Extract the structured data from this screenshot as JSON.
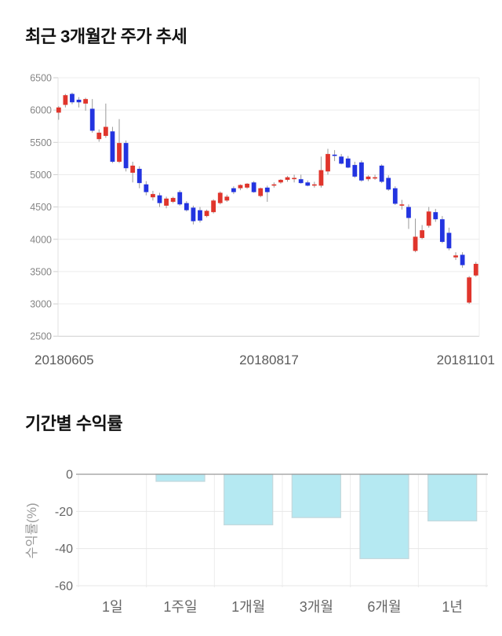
{
  "chart_data": [
    {
      "type": "candlestick",
      "title": "최근 3개월간 주가 추세",
      "x_axis_labels": [
        "20180605",
        "20180817",
        "20181101"
      ],
      "y_ticks": [
        6500,
        6000,
        5500,
        5000,
        4500,
        4000,
        3500,
        3000,
        2500
      ],
      "ylim": [
        2500,
        6500
      ],
      "grid": "horizontal",
      "up_color": "#e0352c",
      "down_color": "#2334e0",
      "wick_color": "#9a9a9a",
      "ohlc": [
        [
          5960,
          6060,
          5850,
          6040
        ],
        [
          6080,
          6250,
          6040,
          6230
        ],
        [
          6250,
          6270,
          6090,
          6120
        ],
        [
          6160,
          6200,
          6040,
          6120
        ],
        [
          6100,
          6190,
          5990,
          6170
        ],
        [
          6020,
          6170,
          5650,
          5680
        ],
        [
          5550,
          5700,
          5510,
          5650
        ],
        [
          5600,
          6100,
          5570,
          5740
        ],
        [
          5670,
          5740,
          5180,
          5200
        ],
        [
          5200,
          5860,
          5180,
          5490
        ],
        [
          5490,
          5530,
          5050,
          5100
        ],
        [
          5030,
          5200,
          4880,
          5140
        ],
        [
          5090,
          5130,
          4790,
          4870
        ],
        [
          4850,
          4900,
          4680,
          4730
        ],
        [
          4650,
          4750,
          4600,
          4700
        ],
        [
          4680,
          4720,
          4500,
          4560
        ],
        [
          4520,
          4660,
          4480,
          4630
        ],
        [
          4580,
          4660,
          4560,
          4640
        ],
        [
          4730,
          4760,
          4520,
          4540
        ],
        [
          4560,
          4590,
          4430,
          4450
        ],
        [
          4490,
          4520,
          4230,
          4280
        ],
        [
          4450,
          4500,
          4260,
          4290
        ],
        [
          4360,
          4460,
          4340,
          4440
        ],
        [
          4420,
          4620,
          4400,
          4600
        ],
        [
          4560,
          4740,
          4540,
          4720
        ],
        [
          4600,
          4690,
          4580,
          4660
        ],
        [
          4790,
          4820,
          4700,
          4730
        ],
        [
          4790,
          4850,
          4760,
          4840
        ],
        [
          4800,
          4870,
          4780,
          4860
        ],
        [
          4880,
          4900,
          4720,
          4730
        ],
        [
          4670,
          4800,
          4650,
          4790
        ],
        [
          4800,
          4830,
          4580,
          4730
        ],
        [
          4840,
          4880,
          4800,
          4850
        ],
        [
          4880,
          4930,
          4860,
          4920
        ],
        [
          4920,
          4980,
          4890,
          4960
        ],
        [
          4940,
          5000,
          4880,
          4950
        ],
        [
          4930,
          5000,
          4860,
          4870
        ],
        [
          4880,
          4910,
          4820,
          4830
        ],
        [
          4840,
          4890,
          4800,
          4850
        ],
        [
          4830,
          5280,
          4800,
          5070
        ],
        [
          5050,
          5400,
          5000,
          5320
        ],
        [
          5310,
          5380,
          5210,
          5290
        ],
        [
          5280,
          5320,
          5160,
          5170
        ],
        [
          5250,
          5290,
          5100,
          5110
        ],
        [
          5150,
          5200,
          4950,
          4970
        ],
        [
          5190,
          5220,
          4890,
          4910
        ],
        [
          4930,
          4990,
          4900,
          4970
        ],
        [
          4950,
          5000,
          4920,
          4960
        ],
        [
          5140,
          5160,
          4870,
          4890
        ],
        [
          4950,
          4990,
          4750,
          4770
        ],
        [
          4790,
          4820,
          4530,
          4550
        ],
        [
          4520,
          4610,
          4460,
          4540
        ],
        [
          4500,
          4540,
          4160,
          4330
        ],
        [
          3820,
          4320,
          3800,
          4040
        ],
        [
          4020,
          4220,
          4000,
          4140
        ],
        [
          4210,
          4500,
          4180,
          4430
        ],
        [
          4420,
          4470,
          4270,
          4310
        ],
        [
          4310,
          4360,
          3940,
          3960
        ],
        [
          4100,
          4180,
          3830,
          3860
        ],
        [
          3720,
          3800,
          3680,
          3750
        ],
        [
          3760,
          3800,
          3560,
          3600
        ],
        [
          3020,
          3430,
          3000,
          3410
        ],
        [
          3440,
          3650,
          3420,
          3620
        ]
      ]
    },
    {
      "type": "bar",
      "title": "기간별 수익률",
      "ylabel": "수익률(%)",
      "categories": [
        "1일",
        "1주일",
        "1개월",
        "3개월",
        "6개월",
        "1년"
      ],
      "values": [
        0,
        -3.8,
        -27.2,
        -23.3,
        -45.4,
        -25.1
      ],
      "y_ticks": [
        0,
        -20,
        -40,
        -60
      ],
      "ylim": [
        -60,
        0
      ],
      "grid": "both",
      "legend": "none",
      "bar_color": "#b5e9f2",
      "bar_border_color": "#c3d9de"
    }
  ]
}
